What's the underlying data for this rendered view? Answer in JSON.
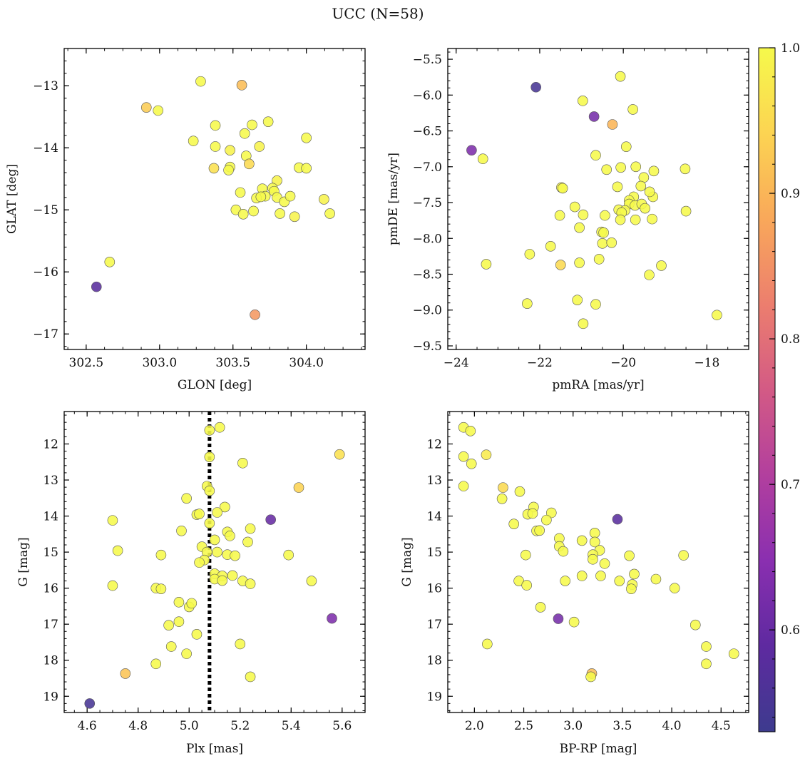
{
  "figure": {
    "title": "UCC (N=58)"
  },
  "colormap": {
    "name": "plasma",
    "range": [
      0.53,
      1.0
    ],
    "ticks": [
      0.6,
      0.7,
      0.8,
      0.9,
      1.0
    ],
    "tick_labels": [
      "0.6",
      "0.7",
      "0.8",
      "0.9",
      "1.0"
    ],
    "stops": [
      "#3d3b8e",
      "#5e2aa0",
      "#8a2fb0",
      "#b23f9e",
      "#d35a85",
      "#ec7e6e",
      "#f9a85a",
      "#fcd452",
      "#f6f94b"
    ]
  },
  "chart_data": [
    {
      "type": "scatter",
      "xlabel": "GLON [deg]",
      "ylabel": "GLAT [deg]",
      "xlim": [
        302.35,
        304.4
      ],
      "ylim": [
        -17.25,
        -12.4
      ],
      "y_inverted": false,
      "xticks": [
        302.5,
        303.0,
        303.5,
        304.0
      ],
      "xtick_labels": [
        "302.5",
        "303.0",
        "303.5",
        "304.0"
      ],
      "yticks": [
        -13,
        -14,
        -15,
        -16,
        -17
      ],
      "ytick_labels": [
        "−13",
        "−14",
        "−15",
        "−16",
        "−17"
      ],
      "points": [
        [
          303.28,
          -12.93,
          1.0
        ],
        [
          303.56,
          -12.99,
          0.91
        ],
        [
          302.91,
          -13.35,
          0.93
        ],
        [
          302.99,
          -13.4,
          1.0
        ],
        [
          303.74,
          -13.58,
          1.0
        ],
        [
          303.63,
          -13.63,
          1.0
        ],
        [
          303.38,
          -13.64,
          1.0
        ],
        [
          303.58,
          -13.77,
          1.0
        ],
        [
          303.23,
          -13.89,
          1.0
        ],
        [
          304.0,
          -13.84,
          1.0
        ],
        [
          303.38,
          -13.98,
          1.0
        ],
        [
          303.68,
          -13.98,
          0.99
        ],
        [
          303.48,
          -14.04,
          0.99
        ],
        [
          303.59,
          -14.13,
          1.0
        ],
        [
          303.61,
          -14.26,
          0.95
        ],
        [
          303.37,
          -14.33,
          0.96
        ],
        [
          303.48,
          -14.31,
          1.0
        ],
        [
          303.47,
          -14.36,
          1.0
        ],
        [
          303.95,
          -14.32,
          1.0
        ],
        [
          304.0,
          -14.33,
          1.0
        ],
        [
          303.8,
          -14.53,
          0.99
        ],
        [
          303.7,
          -14.66,
          1.0
        ],
        [
          303.77,
          -14.65,
          1.0
        ],
        [
          303.78,
          -14.7,
          1.0
        ],
        [
          303.55,
          -14.72,
          1.0
        ],
        [
          303.72,
          -14.78,
          1.0
        ],
        [
          303.66,
          -14.81,
          1.0
        ],
        [
          303.69,
          -14.79,
          1.0
        ],
        [
          303.8,
          -14.8,
          1.0
        ],
        [
          303.85,
          -14.87,
          1.0
        ],
        [
          303.89,
          -14.78,
          1.0
        ],
        [
          304.12,
          -14.83,
          0.99
        ],
        [
          303.52,
          -15.0,
          1.0
        ],
        [
          303.64,
          -15.02,
          1.0
        ],
        [
          303.57,
          -15.07,
          1.0
        ],
        [
          303.82,
          -15.06,
          1.0
        ],
        [
          303.92,
          -15.11,
          0.99
        ],
        [
          304.16,
          -15.06,
          1.0
        ],
        [
          302.66,
          -15.84,
          1.0
        ],
        [
          302.57,
          -16.24,
          0.58
        ],
        [
          303.65,
          -16.69,
          0.86
        ]
      ]
    },
    {
      "type": "scatter",
      "xlabel": "pmRA [mas/yr]",
      "ylabel": "pmDE [mas/yr]",
      "xlim": [
        -24.2,
        -17.0
      ],
      "ylim": [
        -9.55,
        -5.35
      ],
      "y_inverted": false,
      "xticks": [
        -24,
        -22,
        -20,
        -18
      ],
      "xtick_labels": [
        "−24",
        "−22",
        "−20",
        "−18"
      ],
      "yticks": [
        -5.5,
        -6.0,
        -6.5,
        -7.0,
        -7.5,
        -8.0,
        -8.5,
        -9.0,
        -9.5
      ],
      "ytick_labels": [
        "−5.5",
        "−6.0",
        "−6.5",
        "−7.0",
        "−7.5",
        "−8.0",
        "−8.5",
        "−9.0",
        "−9.5"
      ],
      "points": [
        [
          -20.07,
          -5.74,
          1.0
        ],
        [
          -22.09,
          -5.89,
          0.55
        ],
        [
          -20.97,
          -6.08,
          1.0
        ],
        [
          -19.77,
          -6.2,
          1.0
        ],
        [
          -20.7,
          -6.3,
          0.62
        ],
        [
          -20.26,
          -6.41,
          0.9
        ],
        [
          -23.63,
          -6.77,
          0.63
        ],
        [
          -23.36,
          -6.89,
          1.0
        ],
        [
          -19.93,
          -6.72,
          1.0
        ],
        [
          -20.66,
          -6.84,
          1.0
        ],
        [
          -19.7,
          -7.0,
          1.0
        ],
        [
          -20.06,
          -7.01,
          1.0
        ],
        [
          -20.4,
          -7.04,
          1.0
        ],
        [
          -19.27,
          -7.06,
          1.0
        ],
        [
          -18.52,
          -7.03,
          1.0
        ],
        [
          -19.51,
          -7.15,
          1.0
        ],
        [
          -20.14,
          -7.28,
          1.0
        ],
        [
          -19.58,
          -7.27,
          1.0
        ],
        [
          -21.48,
          -7.29,
          0.99
        ],
        [
          -21.45,
          -7.3,
          1.0
        ],
        [
          -19.75,
          -7.42,
          1.0
        ],
        [
          -19.29,
          -7.42,
          1.0
        ],
        [
          -19.86,
          -7.47,
          1.0
        ],
        [
          -19.86,
          -7.52,
          1.0
        ],
        [
          -19.72,
          -7.54,
          1.0
        ],
        [
          -19.56,
          -7.52,
          1.0
        ],
        [
          -21.16,
          -7.56,
          1.0
        ],
        [
          -20.11,
          -7.6,
          1.0
        ],
        [
          -19.96,
          -7.61,
          1.0
        ],
        [
          -19.48,
          -7.58,
          1.0
        ],
        [
          -19.37,
          -7.35,
          1.0
        ],
        [
          -20.04,
          -7.64,
          1.0
        ],
        [
          -18.5,
          -7.62,
          1.0
        ],
        [
          -21.52,
          -7.68,
          1.0
        ],
        [
          -20.96,
          -7.67,
          1.0
        ],
        [
          -20.44,
          -7.68,
          1.0
        ],
        [
          -19.71,
          -7.74,
          1.0
        ],
        [
          -19.31,
          -7.73,
          1.0
        ],
        [
          -20.07,
          -7.74,
          1.0
        ],
        [
          -21.05,
          -7.85,
          1.0
        ],
        [
          -20.52,
          -7.91,
          1.0
        ],
        [
          -20.47,
          -7.92,
          1.0
        ],
        [
          -21.74,
          -8.11,
          1.0
        ],
        [
          -20.5,
          -8.07,
          1.0
        ],
        [
          -20.28,
          -8.06,
          1.0
        ],
        [
          -22.24,
          -8.22,
          1.0
        ],
        [
          -20.58,
          -8.29,
          1.0
        ],
        [
          -21.05,
          -8.34,
          1.0
        ],
        [
          -21.5,
          -8.37,
          0.95
        ],
        [
          -23.28,
          -8.36,
          1.0
        ],
        [
          -19.09,
          -8.38,
          1.0
        ],
        [
          -19.38,
          -8.51,
          1.0
        ],
        [
          -21.1,
          -8.86,
          1.0
        ],
        [
          -22.3,
          -8.91,
          1.0
        ],
        [
          -20.66,
          -8.92,
          1.0
        ],
        [
          -17.76,
          -9.07,
          1.0
        ],
        [
          -20.96,
          -9.19,
          1.0
        ]
      ]
    },
    {
      "type": "scatter",
      "xlabel": "Plx [mas]",
      "ylabel": "G [mag]",
      "xlim": [
        4.51,
        5.69
      ],
      "ylim": [
        11.1,
        19.45
      ],
      "y_inverted": true,
      "vline": {
        "x": 5.08,
        "style": "dotted"
      },
      "xticks": [
        4.6,
        4.8,
        5.0,
        5.2,
        5.4,
        5.6
      ],
      "xtick_labels": [
        "4.6",
        "4.8",
        "5.0",
        "5.2",
        "5.4",
        "5.6"
      ],
      "yticks": [
        12,
        13,
        14,
        15,
        16,
        17,
        18,
        19
      ],
      "ytick_labels": [
        "12",
        "13",
        "14",
        "15",
        "16",
        "17",
        "18",
        "19"
      ],
      "points": [
        [
          5.08,
          11.62,
          1.0
        ],
        [
          5.12,
          11.54,
          1.0
        ],
        [
          5.08,
          12.36,
          1.0
        ],
        [
          5.59,
          12.29,
          0.96
        ],
        [
          5.21,
          12.53,
          1.0
        ],
        [
          5.07,
          13.17,
          1.0
        ],
        [
          5.08,
          13.3,
          1.0
        ],
        [
          5.43,
          13.21,
          0.94
        ],
        [
          4.99,
          13.51,
          1.0
        ],
        [
          5.14,
          13.75,
          1.0
        ],
        [
          5.03,
          13.96,
          1.0
        ],
        [
          5.04,
          13.94,
          1.0
        ],
        [
          5.11,
          13.9,
          1.0
        ],
        [
          4.7,
          14.12,
          1.0
        ],
        [
          5.32,
          14.1,
          0.6
        ],
        [
          5.08,
          14.2,
          1.0
        ],
        [
          4.97,
          14.41,
          1.0
        ],
        [
          5.24,
          14.35,
          1.0
        ],
        [
          5.15,
          14.44,
          1.0
        ],
        [
          5.16,
          14.55,
          1.0
        ],
        [
          5.1,
          14.66,
          1.0
        ],
        [
          5.23,
          14.72,
          1.0
        ],
        [
          5.05,
          14.85,
          1.0
        ],
        [
          4.72,
          14.96,
          1.0
        ],
        [
          5.07,
          15.0,
          1.0
        ],
        [
          5.11,
          15.0,
          1.0
        ],
        [
          5.15,
          15.07,
          1.0
        ],
        [
          5.18,
          15.1,
          1.0
        ],
        [
          4.89,
          15.08,
          1.0
        ],
        [
          5.39,
          15.08,
          1.0
        ],
        [
          5.06,
          15.22,
          1.0
        ],
        [
          5.04,
          15.29,
          1.0
        ],
        [
          5.1,
          15.6,
          1.0
        ],
        [
          5.13,
          15.66,
          1.0
        ],
        [
          5.17,
          15.65,
          1.0
        ],
        [
          5.1,
          15.75,
          1.0
        ],
        [
          5.13,
          15.79,
          1.0
        ],
        [
          5.21,
          15.8,
          1.0
        ],
        [
          5.24,
          15.88,
          1.0
        ],
        [
          5.48,
          15.8,
          1.0
        ],
        [
          4.7,
          15.93,
          1.0
        ],
        [
          4.87,
          16.0,
          1.0
        ],
        [
          4.89,
          16.02,
          1.0
        ],
        [
          4.96,
          16.39,
          1.0
        ],
        [
          5.0,
          16.52,
          1.0
        ],
        [
          5.01,
          16.42,
          1.0
        ],
        [
          5.56,
          16.84,
          0.63
        ],
        [
          4.96,
          16.93,
          1.0
        ],
        [
          4.92,
          17.03,
          1.0
        ],
        [
          5.03,
          17.28,
          1.0
        ],
        [
          4.93,
          17.62,
          1.0
        ],
        [
          5.2,
          17.55,
          1.0
        ],
        [
          4.99,
          17.82,
          1.0
        ],
        [
          4.87,
          18.1,
          1.0
        ],
        [
          4.75,
          18.37,
          0.92
        ],
        [
          5.24,
          18.46,
          1.0
        ],
        [
          4.61,
          19.2,
          0.55
        ]
      ]
    },
    {
      "type": "scatter",
      "xlabel": "BP-RP [mag]",
      "ylabel": "G [mag]",
      "xlim": [
        1.73,
        4.78
      ],
      "ylim": [
        11.1,
        19.45
      ],
      "y_inverted": true,
      "xticks": [
        2.0,
        2.5,
        3.0,
        3.5,
        4.0,
        4.5
      ],
      "xtick_labels": [
        "2.0",
        "2.5",
        "3.0",
        "3.5",
        "4.0",
        "4.5"
      ],
      "yticks": [
        12,
        13,
        14,
        15,
        16,
        17,
        18,
        19
      ],
      "ytick_labels": [
        "12",
        "13",
        "14",
        "15",
        "16",
        "17",
        "18",
        "19"
      ],
      "points": [
        [
          1.89,
          11.54,
          1.0
        ],
        [
          1.96,
          11.64,
          1.0
        ],
        [
          1.89,
          12.35,
          1.0
        ],
        [
          2.12,
          12.3,
          0.98
        ],
        [
          1.97,
          12.55,
          1.0
        ],
        [
          1.89,
          13.17,
          1.0
        ],
        [
          2.29,
          13.21,
          0.95
        ],
        [
          2.46,
          13.32,
          1.0
        ],
        [
          2.28,
          13.52,
          1.0
        ],
        [
          2.6,
          13.75,
          1.0
        ],
        [
          2.54,
          13.95,
          1.0
        ],
        [
          2.59,
          13.93,
          1.0
        ],
        [
          2.78,
          13.91,
          1.0
        ],
        [
          2.4,
          14.22,
          1.0
        ],
        [
          2.73,
          14.11,
          1.0
        ],
        [
          3.45,
          14.09,
          0.58
        ],
        [
          2.63,
          14.41,
          1.0
        ],
        [
          2.66,
          14.4,
          1.0
        ],
        [
          3.22,
          14.47,
          1.0
        ],
        [
          2.86,
          14.62,
          1.0
        ],
        [
          3.09,
          14.68,
          1.0
        ],
        [
          3.22,
          14.72,
          1.0
        ],
        [
          2.86,
          14.84,
          1.0
        ],
        [
          2.9,
          14.98,
          1.0
        ],
        [
          3.27,
          14.95,
          1.0
        ],
        [
          3.2,
          15.07,
          1.0
        ],
        [
          2.52,
          15.08,
          1.0
        ],
        [
          3.57,
          15.1,
          1.0
        ],
        [
          4.12,
          15.09,
          1.0
        ],
        [
          3.2,
          15.2,
          1.0
        ],
        [
          3.32,
          15.32,
          1.0
        ],
        [
          3.09,
          15.66,
          1.0
        ],
        [
          3.28,
          15.66,
          1.0
        ],
        [
          3.62,
          15.61,
          1.0
        ],
        [
          2.45,
          15.8,
          1.0
        ],
        [
          2.92,
          15.8,
          1.0
        ],
        [
          3.47,
          15.8,
          1.0
        ],
        [
          3.84,
          15.75,
          1.0
        ],
        [
          2.53,
          15.92,
          1.0
        ],
        [
          3.6,
          15.9,
          1.0
        ],
        [
          3.59,
          16.02,
          1.0
        ],
        [
          4.03,
          16.0,
          1.0
        ],
        [
          2.67,
          16.53,
          1.0
        ],
        [
          2.85,
          16.85,
          0.62
        ],
        [
          3.01,
          16.94,
          1.0
        ],
        [
          4.24,
          17.02,
          1.0
        ],
        [
          2.13,
          17.55,
          1.0
        ],
        [
          4.35,
          17.62,
          1.0
        ],
        [
          4.63,
          17.82,
          1.0
        ],
        [
          4.35,
          18.1,
          1.0
        ],
        [
          3.19,
          18.37,
          0.91
        ],
        [
          3.18,
          18.46,
          1.0
        ]
      ]
    }
  ]
}
